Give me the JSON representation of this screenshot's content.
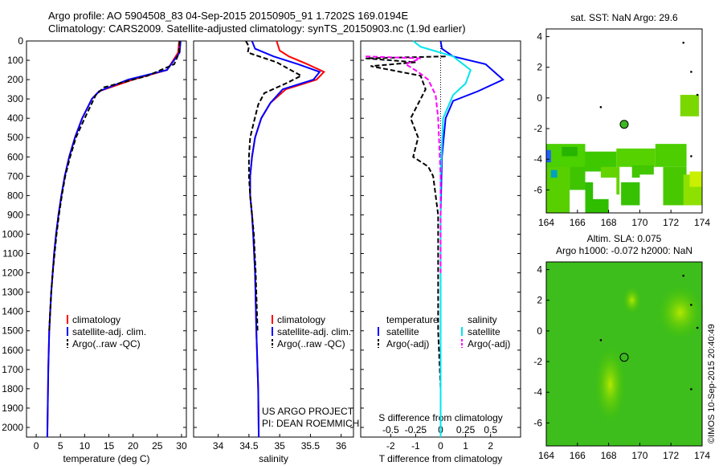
{
  "header": {
    "title_line1": "Argo profile: AO 5904508_83 04-Sep-2015 20150905_91 1.7202S 169.0194E",
    "title_line2": "Climatology: CARS2009. Satellite-adjusted climatology: synTS_20150903.nc (1.9d earlier)"
  },
  "colors": {
    "climatology": "#ff0000",
    "satellite": "#0000ff",
    "argo": "#000000",
    "satellite_s": "#00e5ee",
    "argo_s": "#ff00ff"
  },
  "chart_data": [
    {
      "type": "line",
      "xlabel": "temperature (deg C)",
      "xlim": [
        -2,
        31
      ],
      "ylim": [
        0,
        2050
      ],
      "xticks": [
        "0",
        "5",
        "10",
        "15",
        "20",
        "25",
        "30"
      ],
      "yticks": [
        "0",
        "100",
        "200",
        "300",
        "400",
        "500",
        "600",
        "700",
        "800",
        "900",
        "1000",
        "1100",
        "1200",
        "1300",
        "1400",
        "1500",
        "1600",
        "1700",
        "1800",
        "1900",
        "2000"
      ],
      "legend": [
        "climatology",
        "satellite-adj. clim.",
        "Argo(..raw -QC)"
      ],
      "series": [
        {
          "name": "climatology",
          "x": [
            29.5,
            29.3,
            27,
            20,
            13,
            11.5,
            9.5,
            8,
            6.8,
            5.9,
            5.2,
            4.6,
            4.1,
            3.7,
            3.4,
            3.1,
            2.9,
            2.7,
            2.5,
            2.3
          ],
          "y": [
            0,
            60,
            150,
            200,
            260,
            300,
            400,
            500,
            600,
            700,
            800,
            900,
            1000,
            1100,
            1200,
            1300,
            1400,
            1500,
            1700,
            2050
          ]
        },
        {
          "name": "satellite-adj. clim.",
          "x": [
            29.8,
            29.6,
            27,
            19,
            13,
            11.5,
            9.5,
            8,
            6.8,
            5.9,
            5.2,
            4.6,
            4.1,
            3.7,
            3.4,
            3.1,
            2.9,
            2.7,
            2.5,
            2.3
          ],
          "y": [
            0,
            60,
            150,
            200,
            260,
            300,
            400,
            500,
            600,
            700,
            800,
            900,
            1000,
            1100,
            1200,
            1300,
            1400,
            1500,
            1700,
            2050
          ]
        },
        {
          "name": "Argo(..raw -QC)",
          "x": [
            29.6,
            29.5,
            28.5,
            23,
            14,
            12.3,
            10,
            8.2,
            7,
            6,
            5.3,
            4.7,
            4.2,
            3.8,
            3.4,
            3.1,
            2.9,
            2.7
          ],
          "y": [
            0,
            60,
            120,
            180,
            240,
            280,
            400,
            500,
            600,
            700,
            800,
            900,
            1000,
            1100,
            1200,
            1300,
            1400,
            1500
          ]
        }
      ]
    },
    {
      "type": "line",
      "xlabel": "salinity",
      "xlim": [
        33.6,
        36.2
      ],
      "ylim": [
        0,
        2050
      ],
      "xticks": [
        "34",
        "34.5",
        "35",
        "35.5",
        "36"
      ],
      "legend": [
        "climatology",
        "satellite-adj. clim.",
        "Argo(..raw -QC)"
      ],
      "series": [
        {
          "name": "climatology",
          "x": [
            34.95,
            35.0,
            35.15,
            35.45,
            35.72,
            35.6,
            35.1,
            34.85,
            34.7,
            34.6,
            34.55,
            34.52,
            34.52,
            34.55,
            34.57,
            34.6,
            34.62,
            34.65,
            34.66
          ],
          "y": [
            0,
            50,
            80,
            120,
            160,
            200,
            250,
            320,
            400,
            500,
            600,
            700,
            800,
            900,
            1000,
            1200,
            1500,
            1800,
            2050
          ]
        },
        {
          "name": "satellite-adj. clim.",
          "x": [
            34.55,
            34.6,
            34.9,
            35.3,
            35.65,
            35.55,
            35.05,
            34.85,
            34.7,
            34.6,
            34.55,
            34.52,
            34.52,
            34.55,
            34.57,
            34.6,
            34.62,
            34.65,
            34.66
          ],
          "y": [
            0,
            40,
            80,
            120,
            160,
            200,
            250,
            320,
            400,
            500,
            600,
            700,
            800,
            900,
            1000,
            1200,
            1500,
            1800,
            2050
          ]
        },
        {
          "name": "Argo(..raw -QC)",
          "x": [
            34.45,
            34.5,
            34.48,
            34.95,
            35.35,
            35.1,
            34.75,
            34.65,
            34.58,
            34.52,
            34.5,
            34.5,
            34.52,
            34.55,
            34.58,
            34.61,
            34.64
          ],
          "y": [
            0,
            30,
            60,
            110,
            180,
            220,
            270,
            330,
            420,
            500,
            600,
            700,
            800,
            900,
            1000,
            1200,
            1500
          ]
        }
      ]
    },
    {
      "type": "line",
      "xlabel": "T difference from climatology",
      "top_xlabel": "S difference from climatology",
      "xlim": [
        -3.2,
        3.2
      ],
      "ylim": [
        0,
        2050
      ],
      "xticks": [
        "-2",
        "-1",
        "0",
        "1",
        "2"
      ],
      "top_xticks": [
        "-0.5",
        "-0.25",
        "0",
        "0.25",
        "0.5"
      ],
      "legend_headers": [
        "temperature",
        "salinity"
      ],
      "legend": [
        "satellite",
        "Argo(-adj)",
        "satellite",
        "Argo(-adj)"
      ],
      "series": [
        {
          "name": "satellite",
          "x": [
            0,
            0.05,
            0.5,
            1.8,
            2.5,
            1.5,
            0.5,
            0.2,
            0.05,
            0,
            0,
            0
          ],
          "y": [
            0,
            40,
            80,
            120,
            200,
            260,
            310,
            400,
            600,
            900,
            1500,
            2050
          ]
        },
        {
          "name": "Argo(-adj)",
          "x": [
            0.2,
            -3.0,
            -1.0,
            -2.8,
            -0.8,
            -0.6,
            -1.2,
            -0.9,
            -1.1,
            -0.5,
            -0.3,
            -0.1,
            -0.1,
            0
          ],
          "y": [
            80,
            90,
            110,
            130,
            180,
            250,
            400,
            500,
            600,
            650,
            700,
            900,
            1500,
            1800
          ]
        },
        {
          "name": "satellite",
          "x": [
            -1.1,
            -0.8,
            0.5,
            1.2,
            1.0,
            0.5,
            0.1,
            0,
            0,
            0
          ],
          "y": [
            0,
            30,
            80,
            150,
            220,
            280,
            400,
            700,
            1200,
            2050
          ]
        },
        {
          "name": "Argo(-adj)",
          "x": [
            -3.0,
            -0.8,
            -1.4,
            -0.9,
            -0.5,
            -0.2,
            -0.1,
            0,
            0
          ],
          "y": [
            80,
            90,
            120,
            160,
            200,
            280,
            400,
            700,
            1200
          ]
        }
      ]
    },
    {
      "type": "heatmap",
      "title": "sat. SST: NaN Argo: 29.6",
      "xlim": [
        164,
        174
      ],
      "ylim": [
        -7.5,
        4.5
      ],
      "xticks": [
        "164",
        "166",
        "168",
        "170",
        "172",
        "174"
      ],
      "yticks": [
        "4",
        "2",
        "0",
        "-2",
        "-4",
        "-6"
      ],
      "marker": {
        "lon": 169.0,
        "lat": -1.72
      }
    },
    {
      "type": "heatmap",
      "title": "Altim. SLA: 0.075",
      "title2": "Argo h1000: -0.072 h2000: NaN",
      "xlim": [
        164,
        174
      ],
      "ylim": [
        -7.5,
        4.5
      ],
      "xticks": [
        "164",
        "166",
        "168",
        "170",
        "172",
        "174"
      ],
      "yticks": [
        "4",
        "2",
        "0",
        "-2",
        "-4",
        "-6"
      ],
      "marker": {
        "lon": 169.0,
        "lat": -1.72
      }
    }
  ],
  "annotations": {
    "project": "US ARGO PROJECT",
    "pi": "PI: DEAN ROEMMICH",
    "stamp": "©IMOS 10-Sep-2015 20:40:49"
  }
}
